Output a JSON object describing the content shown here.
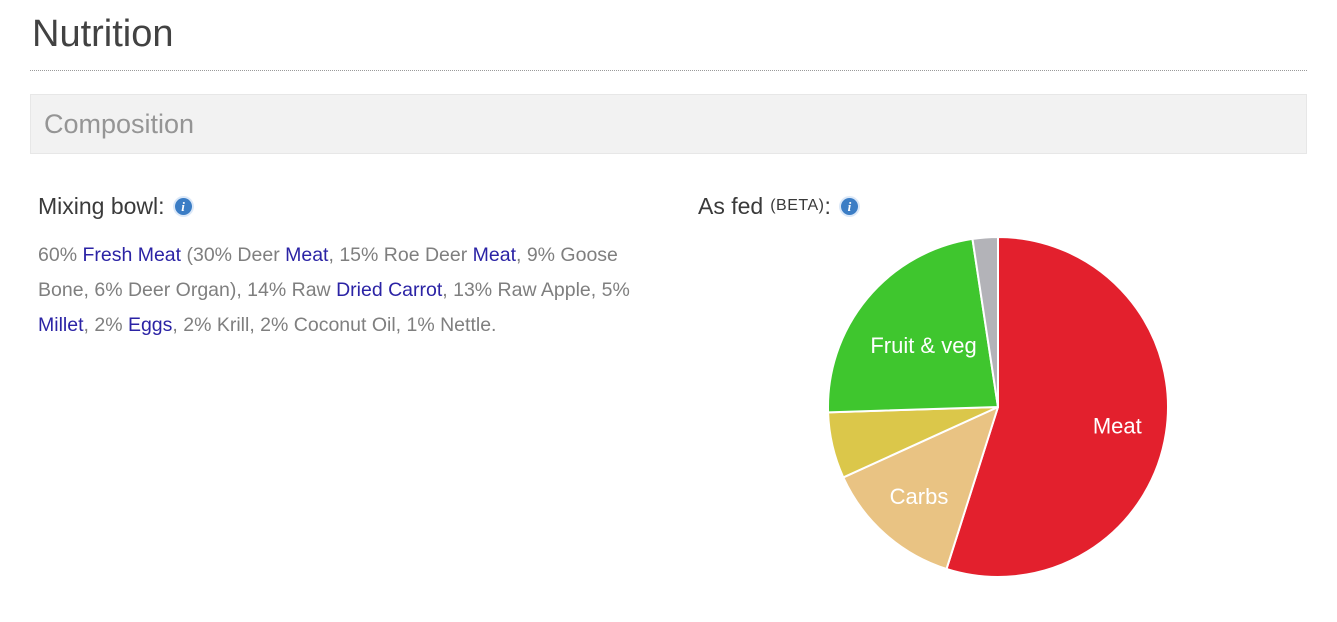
{
  "page": {
    "title": "Nutrition"
  },
  "section": {
    "title": "Composition"
  },
  "icons": {
    "info_glyph": "i"
  },
  "colors": {
    "link": "#2b23a5",
    "body_text": "#7f7f7f",
    "heading_text": "#3a3a3a",
    "section_bar_bg": "#f2f2f2",
    "info_icon_blue": "#3b7dc5"
  },
  "mixing_bowl": {
    "title": "Mixing bowl:",
    "segments": [
      {
        "text": "60% ",
        "link": false
      },
      {
        "text": "Fresh Meat",
        "link": true
      },
      {
        "text": " (30% Deer ",
        "link": false
      },
      {
        "text": "Meat",
        "link": true
      },
      {
        "text": ", 15% Roe Deer ",
        "link": false
      },
      {
        "text": "Meat",
        "link": true
      },
      {
        "text": ", 9% Goose Bone, 6% Deer Organ), 14% Raw ",
        "link": false
      },
      {
        "text": "Dried Carrot",
        "link": true
      },
      {
        "text": ", 13% Raw Apple, 5% ",
        "link": false
      },
      {
        "text": "Millet",
        "link": true
      },
      {
        "text": ", 2% ",
        "link": false
      },
      {
        "text": "Eggs",
        "link": true
      },
      {
        "text": ", 2% Krill, 2% Coconut Oil, 1% Nettle.",
        "link": false
      }
    ]
  },
  "as_fed": {
    "title": "As fed",
    "beta_label": "(BETA)",
    "suffix": ":"
  },
  "chart_data": {
    "type": "pie",
    "title": "As fed (BETA)",
    "unit": "percent",
    "direction": "clockwise",
    "start_angle_deg": 0,
    "slice_border_color": "#ffffff",
    "legend": "none",
    "slices": [
      {
        "label": "Meat",
        "value": 54.9,
        "color": "#e3202d"
      },
      {
        "label": "Carbs",
        "value": 13.3,
        "color": "#e9c383"
      },
      {
        "label": "",
        "value": 6.3,
        "color": "#dbc74a"
      },
      {
        "label": "Fruit & veg",
        "value": 23.1,
        "color": "#3fc62e"
      },
      {
        "label": "",
        "value": 2.4,
        "color": "#b3b3b8"
      }
    ]
  }
}
